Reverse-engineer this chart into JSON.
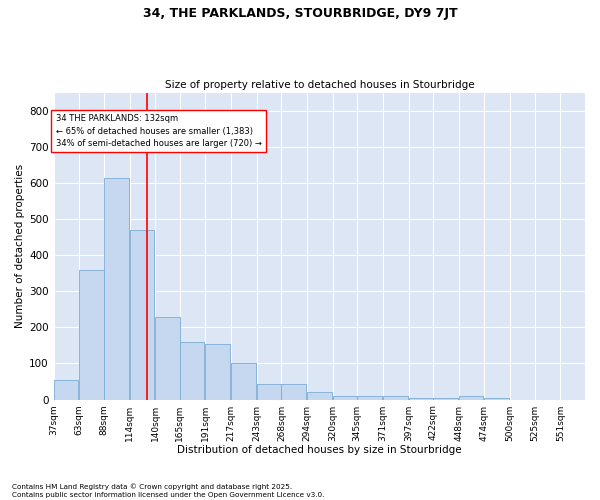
{
  "title_line1": "34, THE PARKLANDS, STOURBRIDGE, DY9 7JT",
  "title_line2": "Size of property relative to detached houses in Stourbridge",
  "xlabel": "Distribution of detached houses by size in Stourbridge",
  "ylabel": "Number of detached properties",
  "bar_color": "#c5d8f0",
  "bar_edge_color": "#7aadd4",
  "background_color": "#dce6f5",
  "vline_x": 132,
  "vline_color": "red",
  "annotation_text": "34 THE PARKLANDS: 132sqm\n← 65% of detached houses are smaller (1,383)\n34% of semi-detached houses are larger (720) →",
  "categories": [
    "37sqm",
    "63sqm",
    "88sqm",
    "114sqm",
    "140sqm",
    "165sqm",
    "191sqm",
    "217sqm",
    "243sqm",
    "268sqm",
    "294sqm",
    "320sqm",
    "345sqm",
    "371sqm",
    "397sqm",
    "422sqm",
    "448sqm",
    "474sqm",
    "500sqm",
    "525sqm",
    "551sqm"
  ],
  "bin_edges": [
    37,
    63,
    88,
    114,
    140,
    165,
    191,
    217,
    243,
    268,
    294,
    320,
    345,
    371,
    397,
    422,
    448,
    474,
    500,
    525,
    551
  ],
  "values": [
    55,
    360,
    615,
    470,
    230,
    160,
    155,
    100,
    43,
    43,
    20,
    10,
    10,
    10,
    5,
    5,
    10,
    5,
    0,
    0,
    0
  ],
  "ylim": [
    0,
    850
  ],
  "yticks": [
    0,
    100,
    200,
    300,
    400,
    500,
    600,
    700,
    800
  ],
  "footnote": "Contains HM Land Registry data © Crown copyright and database right 2025.\nContains public sector information licensed under the Open Government Licence v3.0."
}
